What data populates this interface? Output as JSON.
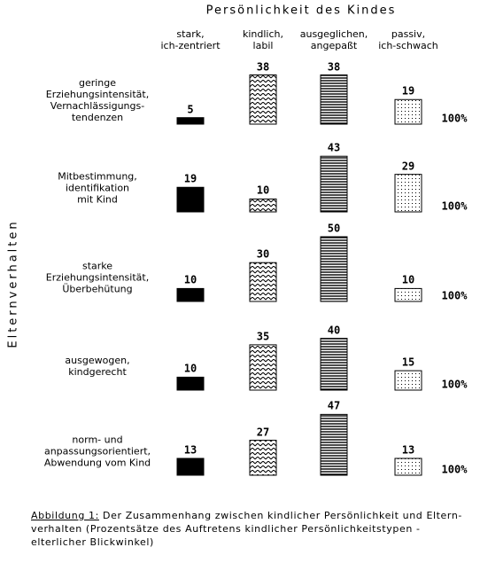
{
  "chart_data": {
    "type": "bar",
    "title": "Persönlichkeit des Kindes",
    "y_label": "Elternverhalten",
    "categories": [
      "stark,\nich-zentriert",
      "kindlich,\nlabil",
      "ausgeglichen,\nangepaßt",
      "passiv,\nich-schwach"
    ],
    "series": [
      {
        "name": "geringe\nErziehungsintensität,\nVernachlässigungs-\ntendenzen",
        "values": [
          5,
          38,
          38,
          19
        ]
      },
      {
        "name": "Mitbestimmung,\nidentifikation\nmit Kind",
        "values": [
          19,
          10,
          43,
          29
        ]
      },
      {
        "name": "starke\nErziehungsintensität,\nÜberbehütung",
        "values": [
          10,
          30,
          50,
          10
        ]
      },
      {
        "name": "ausgewogen,\nkindgerecht",
        "values": [
          10,
          35,
          40,
          15
        ]
      },
      {
        "name": "norm- und\nanpassungsorientiert,\nAbwendung vom Kind",
        "values": [
          13,
          27,
          47,
          13
        ]
      }
    ],
    "row_total": "100%",
    "caption_label": "Abbildung 1:",
    "caption": "Der Zusammenhang zwischen kindlicher Persönlichkeit und Eltern-verhalten (Prozentsätze des Auftretens kindlicher Persönlichkeitstypen - elterlicher Blickwinkel)"
  }
}
